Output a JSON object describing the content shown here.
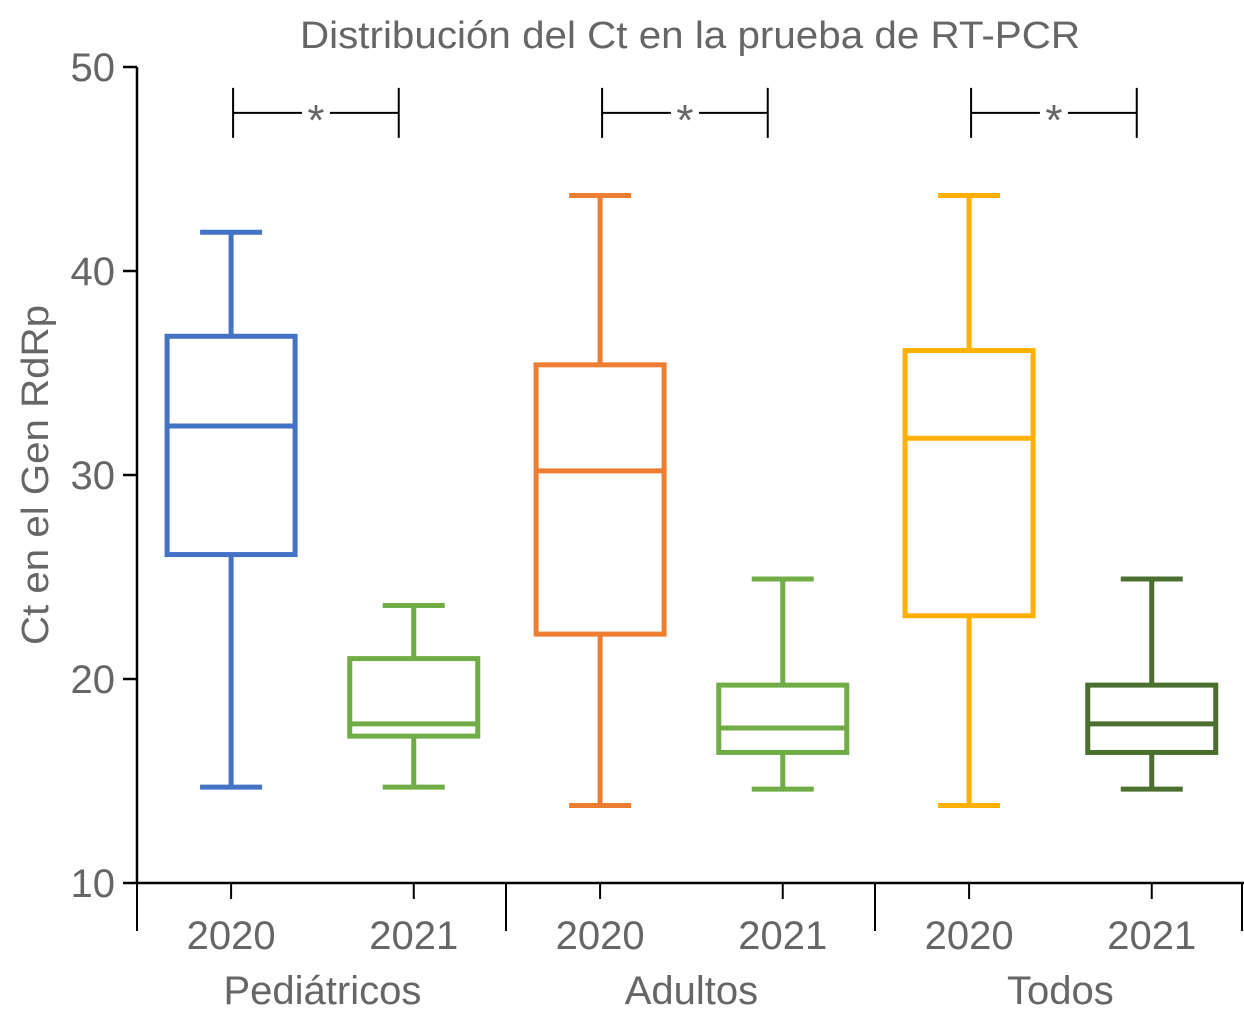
{
  "chart_data": {
    "type": "box",
    "title": "Distribución del Ct en la prueba de RT-PCR",
    "xlabel": "",
    "ylabel": "Ct en el Gen RdRp",
    "ylim": [
      10,
      50
    ],
    "yticks": [
      "10",
      "20",
      "30",
      "40",
      "50"
    ],
    "grid": false,
    "groups": [
      {
        "name": "Pediátricos",
        "significance": "*",
        "boxes": [
          {
            "label": "2020",
            "color": "#4472C4",
            "min": 14.7,
            "q1": 26.1,
            "median": 32.4,
            "q3": 36.8,
            "max": 41.9
          },
          {
            "label": "2021",
            "color": "#70AD47",
            "min": 14.7,
            "q1": 17.2,
            "median": 17.8,
            "q3": 21.0,
            "max": 23.6
          }
        ]
      },
      {
        "name": "Adultos",
        "significance": "*",
        "boxes": [
          {
            "label": "2020",
            "color": "#ED7D31",
            "min": 13.8,
            "q1": 22.2,
            "median": 30.2,
            "q3": 35.4,
            "max": 43.7
          },
          {
            "label": "2021",
            "color": "#70AD47",
            "min": 14.6,
            "q1": 16.4,
            "median": 17.6,
            "q3": 19.7,
            "max": 24.9
          }
        ]
      },
      {
        "name": "Todos",
        "significance": "*",
        "boxes": [
          {
            "label": "2020",
            "color": "#FFB000",
            "min": 13.8,
            "q1": 23.1,
            "median": 31.8,
            "q3": 36.1,
            "max": 43.7
          },
          {
            "label": "2021",
            "color": "#4A6F2E",
            "min": 14.6,
            "q1": 16.4,
            "median": 17.8,
            "q3": 19.7,
            "max": 24.9
          }
        ]
      }
    ],
    "significance_level": 47.8
  }
}
